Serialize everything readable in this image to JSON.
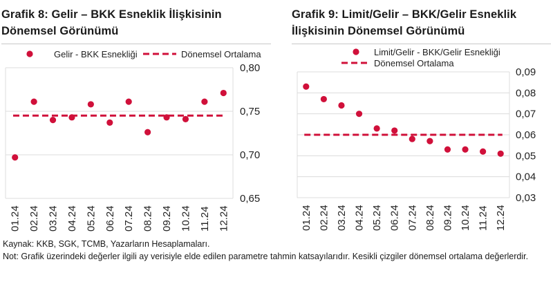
{
  "source_note": "Kaynak: KKB, SGK, TCMB, Yazarların Hesaplamaları.",
  "explanation_note": "Not: Grafik üzerindeki değerler ilgili ay verisiyle elde edilen parametre tahmin katsayılarıdır. Kesikli çizgiler dönemsel ortalama değerlerdir.",
  "colors": {
    "series": "#d0103a",
    "grid": "#dcdcdc",
    "rule": "#c8c8c8"
  },
  "chart_data": [
    {
      "type": "scatter",
      "title_line1": "Grafik 8: Gelir – BKK Esneklik İlişkisinin",
      "title_line2": "Dönemsel Görünümü",
      "categories": [
        "01.24",
        "02.24",
        "03.24",
        "04.24",
        "05.24",
        "06.24",
        "07.24",
        "08.24",
        "09.24",
        "10.24",
        "11.24",
        "12.24"
      ],
      "series": [
        {
          "name": "Gelir - BKK Esnekliği",
          "values": [
            0.697,
            0.761,
            0.74,
            0.743,
            0.758,
            0.737,
            0.761,
            0.726,
            0.743,
            0.741,
            0.761,
            0.771
          ]
        }
      ],
      "average": {
        "name": "Dönemsel Ortalama",
        "value": 0.745
      },
      "ylim": [
        0.65,
        0.8
      ],
      "yticks": [
        "0,65",
        "0,70",
        "0,75",
        "0,80"
      ],
      "ytick_values": [
        0.65,
        0.7,
        0.75,
        0.8
      ],
      "grid": true,
      "y_axis_side": "right",
      "legend_placement": "top"
    },
    {
      "type": "scatter",
      "title_line1": "Grafik 9: Limit/Gelir – BKK/Gelir Esneklik",
      "title_line2": "İlişkisinin Dönemsel Görünümü",
      "categories": [
        "01.24",
        "02.24",
        "03.24",
        "04.24",
        "05.24",
        "06.24",
        "07.24",
        "08.24",
        "09.24",
        "10.24",
        "11.24",
        "12.24"
      ],
      "series": [
        {
          "name": "Limit/Gelir - BKK/Gelir Esnekliği",
          "values": [
            0.083,
            0.077,
            0.074,
            0.07,
            0.063,
            0.062,
            0.058,
            0.057,
            0.053,
            0.053,
            0.052,
            0.051
          ]
        }
      ],
      "average": {
        "name": "Dönemsel Ortalama",
        "value": 0.06
      },
      "ylim": [
        0.03,
        0.09
      ],
      "yticks": [
        "0,03",
        "0,04",
        "0,05",
        "0,06",
        "0,07",
        "0,08",
        "0,09"
      ],
      "ytick_values": [
        0.03,
        0.04,
        0.05,
        0.06,
        0.07,
        0.08,
        0.09
      ],
      "grid": true,
      "y_axis_side": "right",
      "legend_placement": "top"
    }
  ]
}
